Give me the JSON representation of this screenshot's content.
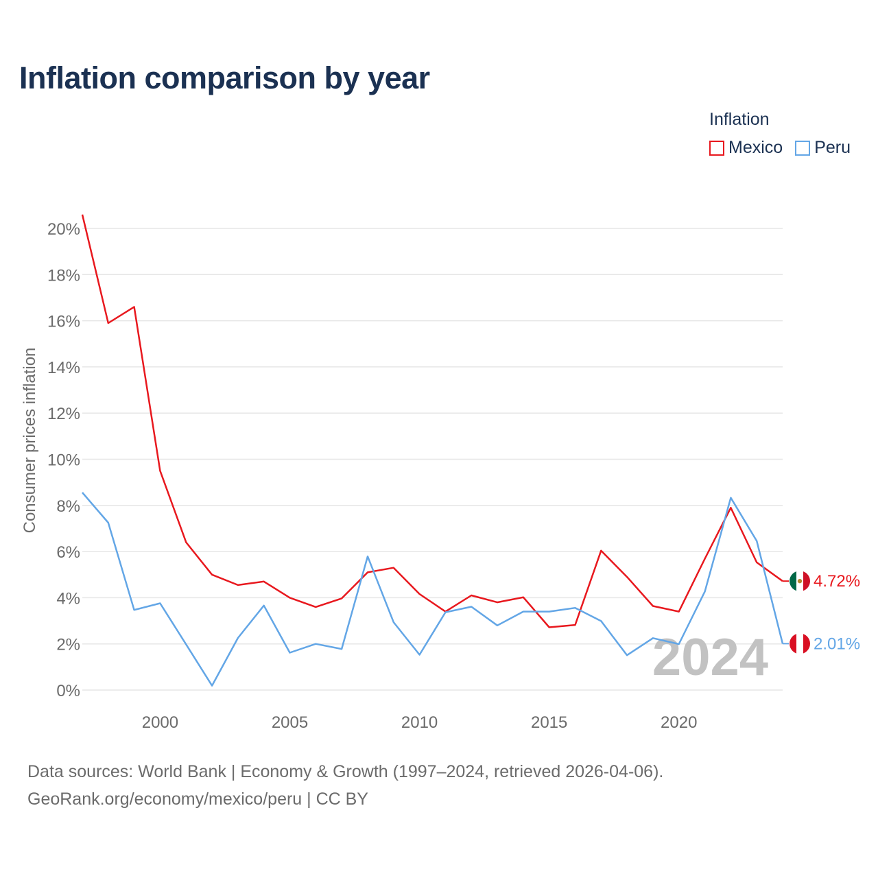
{
  "title": "Inflation comparison by year",
  "legend": {
    "title": "Inflation",
    "items": [
      {
        "label": "Mexico",
        "color": "#e8181e"
      },
      {
        "label": "Peru",
        "color": "#63a6e6"
      }
    ]
  },
  "watermark_year": "2024",
  "footer": {
    "line1": "Data sources: World Bank | Economy & Growth (1997–2024, retrieved 2026-04-06).",
    "line2": "GeoRank.org/economy/mexico/peru | CC BY"
  },
  "chart_data": {
    "type": "line",
    "title": "Inflation comparison by year",
    "xlabel": "",
    "ylabel": "Consumer prices inflation",
    "xlim": [
      1997,
      2024
    ],
    "ylim": [
      0,
      20
    ],
    "grid": true,
    "legend_position": "top-right",
    "x_ticks": [
      2000,
      2005,
      2010,
      2015,
      2020
    ],
    "y_ticks": [
      {
        "value": 0,
        "label": "0%"
      },
      {
        "value": 2,
        "label": "2%"
      },
      {
        "value": 4,
        "label": "4%"
      },
      {
        "value": 6,
        "label": "6%"
      },
      {
        "value": 8,
        "label": "8%"
      },
      {
        "value": 10,
        "label": "10%"
      },
      {
        "value": 12,
        "label": "12%"
      },
      {
        "value": 14,
        "label": "14%"
      },
      {
        "value": 16,
        "label": "16%"
      },
      {
        "value": 18,
        "label": "18%"
      },
      {
        "value": 20,
        "label": "20%"
      }
    ],
    "x": [
      1997,
      1998,
      1999,
      2000,
      2001,
      2002,
      2003,
      2004,
      2005,
      2006,
      2007,
      2008,
      2009,
      2010,
      2011,
      2012,
      2013,
      2014,
      2015,
      2016,
      2017,
      2018,
      2019,
      2020,
      2021,
      2022,
      2023,
      2024
    ],
    "series": [
      {
        "name": "Mexico",
        "color": "#e8181e",
        "end_label": "4.72%",
        "flag": "mexico-flag",
        "values": [
          20.6,
          15.9,
          16.6,
          9.5,
          6.4,
          5.0,
          4.55,
          4.7,
          4.0,
          3.6,
          3.97,
          5.1,
          5.3,
          4.16,
          3.4,
          4.1,
          3.8,
          4.02,
          2.72,
          2.82,
          6.04,
          4.9,
          3.64,
          3.4,
          5.69,
          7.9,
          5.53,
          4.72
        ]
      },
      {
        "name": "Peru",
        "color": "#63a6e6",
        "end_label": "2.01%",
        "flag": "peru-flag",
        "values": [
          8.56,
          7.25,
          3.47,
          3.76,
          1.98,
          0.19,
          2.26,
          3.66,
          1.62,
          2.0,
          1.78,
          5.79,
          2.94,
          1.53,
          3.37,
          3.61,
          2.8,
          3.4,
          3.4,
          3.56,
          2.99,
          1.51,
          2.25,
          1.99,
          4.27,
          8.33,
          6.46,
          2.01
        ]
      }
    ]
  }
}
